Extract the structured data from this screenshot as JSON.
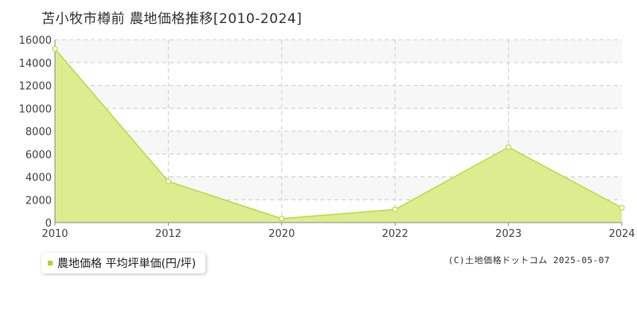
{
  "title": "苫小牧市樽前 農地価格推移[2010-2024]",
  "legend": {
    "label": "農地価格 平均坪単価(円/坪)",
    "color": "#b5d334"
  },
  "copyright": "(C)土地価格ドットコム 2025-05-07",
  "colors": {
    "fill": "#dcec8f",
    "line": "#b8db45",
    "grid": "#cccccc",
    "band": "#f7f7f7"
  },
  "chart_data": {
    "type": "area",
    "title": "苫小牧市樽前 農地価格推移[2010-2024]",
    "categories": [
      "2010",
      "2012",
      "2020",
      "2022",
      "2023",
      "2024"
    ],
    "series": [
      {
        "name": "農地価格 平均坪単価(円/坪)",
        "values": [
          15200,
          3600,
          350,
          1150,
          6600,
          1300
        ]
      }
    ],
    "ylim": [
      0,
      16000
    ],
    "yticks": [
      0,
      2000,
      4000,
      6000,
      8000,
      10000,
      12000,
      14000,
      16000
    ],
    "xlabel": "",
    "ylabel": "",
    "grid": true,
    "legend_position": "bottom-left"
  }
}
